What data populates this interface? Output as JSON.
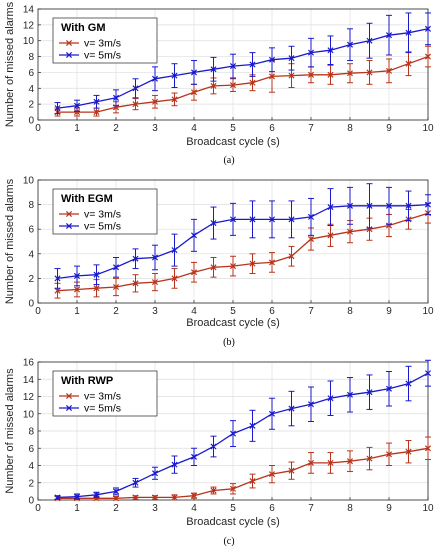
{
  "chart_data": [
    {
      "type": "line",
      "caption": "(a)",
      "title": "With GM",
      "xlabel": "Broadcast cycle (s)",
      "ylabel": "Number of missed alarms",
      "xlim": [
        0,
        10
      ],
      "ylim": [
        0,
        14
      ],
      "xticks": [
        0,
        1,
        2,
        3,
        4,
        5,
        6,
        7,
        8,
        9,
        10
      ],
      "yticks": [
        0,
        2,
        4,
        6,
        8,
        10,
        12,
        14
      ],
      "grid": true,
      "legend_position": "top-left",
      "x": [
        0.5,
        1,
        1.5,
        2,
        2.5,
        3,
        3.5,
        4,
        4.5,
        5,
        5.5,
        6,
        6.5,
        7,
        7.5,
        8,
        8.5,
        9,
        9.5,
        10
      ],
      "series": [
        {
          "name": "v= 3m/s",
          "color": "#b8341c",
          "values": [
            1.0,
            1.0,
            1.0,
            1.6,
            2.0,
            2.3,
            2.6,
            3.5,
            4.3,
            4.4,
            4.7,
            5.5,
            5.6,
            5.7,
            5.7,
            5.9,
            6.0,
            6.2,
            7.1,
            8.0
          ],
          "errors": [
            0.5,
            0.5,
            0.5,
            0.7,
            0.7,
            0.8,
            0.8,
            1.0,
            1.0,
            0.8,
            1.0,
            2.0,
            1.5,
            1.0,
            1.2,
            1.2,
            1.5,
            1.5,
            1.5,
            1.3
          ]
        },
        {
          "name": "v= 5m/s",
          "color": "#1a1acc",
          "values": [
            1.5,
            1.8,
            2.3,
            2.8,
            4.0,
            5.2,
            5.6,
            6.0,
            6.4,
            6.8,
            7.0,
            7.6,
            7.8,
            8.5,
            8.8,
            9.5,
            10.0,
            10.7,
            11.0,
            11.5
          ],
          "errors": [
            0.7,
            0.7,
            0.8,
            1.0,
            1.2,
            1.5,
            1.5,
            1.5,
            1.5,
            1.5,
            1.5,
            1.5,
            1.5,
            1.8,
            1.8,
            2.0,
            2.2,
            2.5,
            2.5,
            2.0
          ]
        }
      ]
    },
    {
      "type": "line",
      "caption": "(b)",
      "title": "With EGM",
      "xlabel": "Broadcast cycle (s)",
      "ylabel": "Number of missed alarms",
      "xlim": [
        0,
        10
      ],
      "ylim": [
        0,
        10
      ],
      "xticks": [
        0,
        1,
        2,
        3,
        4,
        5,
        6,
        7,
        8,
        9,
        10
      ],
      "yticks": [
        0,
        2,
        4,
        6,
        8,
        10
      ],
      "grid": true,
      "legend_position": "top-left",
      "x": [
        0.5,
        1,
        1.5,
        2,
        2.5,
        3,
        3.5,
        4,
        4.5,
        5,
        5.5,
        6,
        6.5,
        7,
        7.5,
        8,
        8.5,
        9,
        9.5,
        10
      ],
      "series": [
        {
          "name": "v= 3m/s",
          "color": "#b8341c",
          "values": [
            1.0,
            1.1,
            1.2,
            1.3,
            1.6,
            1.7,
            2.0,
            2.5,
            2.9,
            3.0,
            3.2,
            3.3,
            3.8,
            5.2,
            5.5,
            5.8,
            6.0,
            6.3,
            6.8,
            7.3
          ],
          "errors": [
            0.6,
            0.6,
            0.7,
            0.7,
            0.7,
            0.7,
            0.8,
            0.8,
            0.8,
            0.8,
            0.8,
            0.8,
            0.8,
            0.9,
            0.9,
            0.9,
            0.9,
            0.9,
            0.8,
            0.8
          ]
        },
        {
          "name": "v= 5m/s",
          "color": "#1a1acc",
          "values": [
            2.0,
            2.2,
            2.3,
            2.9,
            3.6,
            3.7,
            4.3,
            5.5,
            6.5,
            6.8,
            6.8,
            6.8,
            6.8,
            7.0,
            7.8,
            7.9,
            7.9,
            7.9,
            7.9,
            8.0
          ],
          "errors": [
            0.8,
            0.8,
            0.8,
            0.8,
            0.8,
            1.0,
            1.3,
            1.3,
            1.3,
            1.3,
            1.5,
            1.5,
            1.5,
            1.5,
            1.5,
            1.5,
            1.8,
            1.5,
            1.2,
            0.8
          ]
        }
      ]
    },
    {
      "type": "line",
      "caption": "(c)",
      "title": "With RWP",
      "xlabel": "Broadcast cycle (s)",
      "ylabel": "Number of missed alarms",
      "xlim": [
        0,
        10
      ],
      "ylim": [
        0,
        16
      ],
      "xticks": [
        0,
        1,
        2,
        3,
        4,
        5,
        6,
        7,
        8,
        9,
        10
      ],
      "yticks": [
        0,
        2,
        4,
        6,
        8,
        10,
        12,
        14,
        16
      ],
      "grid": true,
      "legend_position": "top-left",
      "x": [
        0.5,
        1,
        1.5,
        2,
        2.5,
        3,
        3.5,
        4,
        4.5,
        5,
        5.5,
        6,
        6.5,
        7,
        7.5,
        8,
        8.5,
        9,
        9.5,
        10
      ],
      "series": [
        {
          "name": "v= 3m/s",
          "color": "#b8341c",
          "values": [
            0.2,
            0.2,
            0.2,
            0.2,
            0.3,
            0.3,
            0.3,
            0.5,
            1.1,
            1.3,
            2.2,
            3.0,
            3.4,
            4.3,
            4.3,
            4.5,
            4.8,
            5.3,
            5.6,
            6.0
          ],
          "errors": [
            0.2,
            0.2,
            0.2,
            0.2,
            0.2,
            0.2,
            0.3,
            0.3,
            0.4,
            0.6,
            0.8,
            1.0,
            1.0,
            1.2,
            1.2,
            1.2,
            1.3,
            1.3,
            1.3,
            1.3
          ]
        },
        {
          "name": "v= 5m/s",
          "color": "#1a1acc",
          "values": [
            0.3,
            0.4,
            0.6,
            1.0,
            2.0,
            3.1,
            4.1,
            5.0,
            6.2,
            7.7,
            8.6,
            10.0,
            10.6,
            11.1,
            11.8,
            12.2,
            12.5,
            12.9,
            13.5,
            14.7
          ],
          "errors": [
            0.2,
            0.3,
            0.3,
            0.4,
            0.5,
            0.7,
            1.0,
            1.0,
            1.2,
            1.5,
            1.8,
            1.8,
            2.0,
            2.0,
            2.0,
            2.0,
            2.0,
            2.0,
            2.0,
            1.5
          ]
        }
      ]
    }
  ]
}
